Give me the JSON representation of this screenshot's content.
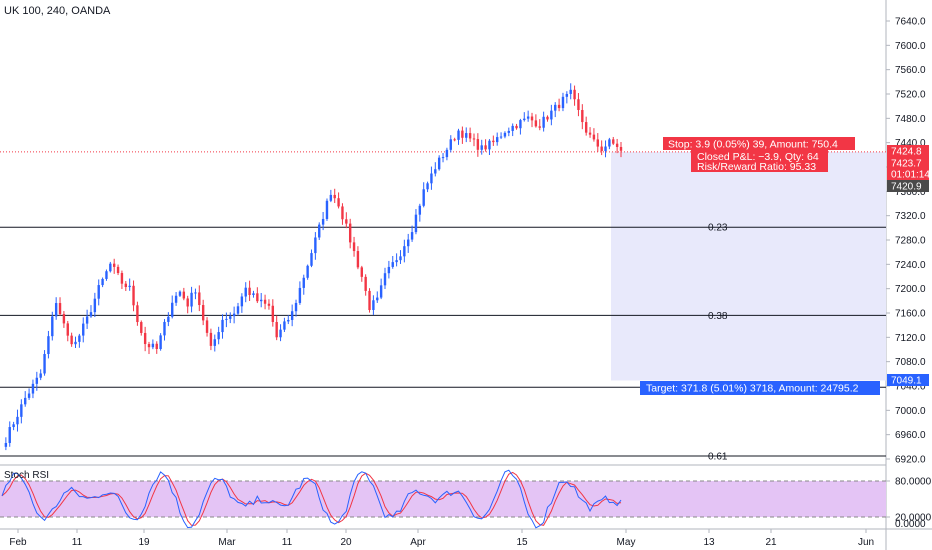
{
  "chart_data": {
    "type": "candlestick",
    "title": "UK 100, 240, OANDA",
    "price_axis": {
      "range": [
        6900,
        7680
      ],
      "ticks": [
        6920,
        6960,
        7000,
        7040,
        7080,
        7120,
        7160,
        7200,
        7240,
        7280,
        7320,
        7360,
        7400,
        7440,
        7480,
        7520,
        7560,
        7600,
        7640
      ],
      "tick_labels": [
        "6920.0",
        "6960.0",
        "7000.0",
        "7040.0",
        "7080.0",
        "7120.0",
        "7160.0",
        "7200.0",
        "7240.0",
        "7280.0",
        "7320.0",
        "7360.0",
        "7400.0",
        "7440.0",
        "7480.0",
        "7520.0",
        "7560.0",
        "7600.0",
        "7640.0"
      ]
    },
    "time_axis": {
      "labels": [
        "Feb",
        "11",
        "19",
        "Mar",
        "11",
        "20",
        "Apr",
        "15",
        "May",
        "13",
        "21",
        "Jun"
      ]
    },
    "price_path": [
      [
        0,
        6940
      ],
      [
        6,
        7020
      ],
      [
        10,
        7060
      ],
      [
        14,
        7180
      ],
      [
        17,
        7120
      ],
      [
        19,
        7110
      ],
      [
        22,
        7150
      ],
      [
        25,
        7200
      ],
      [
        28,
        7240
      ],
      [
        31,
        7210
      ],
      [
        33,
        7200
      ],
      [
        35,
        7150
      ],
      [
        37,
        7110
      ],
      [
        40,
        7100
      ],
      [
        42,
        7140
      ],
      [
        44,
        7180
      ],
      [
        46,
        7195
      ],
      [
        48,
        7175
      ],
      [
        50,
        7200
      ],
      [
        52,
        7150
      ],
      [
        54,
        7100
      ],
      [
        57,
        7150
      ],
      [
        60,
        7160
      ],
      [
        63,
        7200
      ],
      [
        66,
        7180
      ],
      [
        69,
        7170
      ],
      [
        71,
        7120
      ],
      [
        73,
        7140
      ],
      [
        75,
        7160
      ],
      [
        77,
        7200
      ],
      [
        80,
        7260
      ],
      [
        83,
        7320
      ],
      [
        85,
        7360
      ],
      [
        87,
        7340
      ],
      [
        89,
        7300
      ],
      [
        91,
        7260
      ],
      [
        93,
        7220
      ],
      [
        95,
        7170
      ],
      [
        97,
        7180
      ],
      [
        99,
        7220
      ],
      [
        101,
        7240
      ],
      [
        103,
        7260
      ],
      [
        106,
        7300
      ],
      [
        109,
        7360
      ],
      [
        112,
        7400
      ],
      [
        115,
        7430
      ],
      [
        118,
        7460
      ],
      [
        120,
        7450
      ],
      [
        122,
        7440
      ],
      [
        124,
        7430
      ],
      [
        127,
        7440
      ],
      [
        130,
        7460
      ],
      [
        133,
        7470
      ],
      [
        136,
        7480
      ],
      [
        139,
        7470
      ],
      [
        142,
        7490
      ],
      [
        145,
        7510
      ],
      [
        147,
        7520
      ],
      [
        149,
        7490
      ],
      [
        151,
        7460
      ],
      [
        153,
        7440
      ],
      [
        155,
        7430
      ],
      [
        157,
        7440
      ],
      [
        159,
        7435
      ],
      [
        160,
        7425
      ]
    ],
    "horizontal_levels": [
      {
        "price": 7301,
        "label": "0.23"
      },
      {
        "price": 7156,
        "label": "0.38"
      },
      {
        "price": 7038,
        "label": ""
      },
      {
        "price": 6925,
        "label": "0.61"
      }
    ],
    "position": {
      "entry": 7424.8,
      "target": 7049.1,
      "stop_text": "Stop: 3.9 (0.05%) 39, Amount: 750.4",
      "pnl_text": "Closed P&L: −3.9, Qty: 64",
      "rr_text": "Risk/Reward Ratio: 95.33",
      "target_text": "Target: 371.8 (5.01%) 3718, Amount: 24795.2",
      "stop_color": "#f23645",
      "target_color": "#2962ff",
      "zone_color": "#e8e9fb"
    },
    "price_tags": [
      {
        "value": "7424.8",
        "color": "#f23645"
      },
      {
        "value": "7423.7",
        "color": "#f23645"
      },
      {
        "value": "01:01:14",
        "color": "#f23645"
      },
      {
        "value": "7420.9",
        "color": "#4a4a4a"
      },
      {
        "value": "7049.1",
        "color": "#2962ff"
      }
    ],
    "indicator": {
      "name": "Stoch RSI",
      "axis_ticks": [
        "80.0000",
        "20.0000",
        "0.0000"
      ],
      "upper_band": 80,
      "lower_band": 20,
      "band_color": "#e4c4f5",
      "k_color": "#2962ff",
      "d_color": "#f23645"
    },
    "colors": {
      "up": "#2962ff",
      "down": "#f23645"
    }
  }
}
